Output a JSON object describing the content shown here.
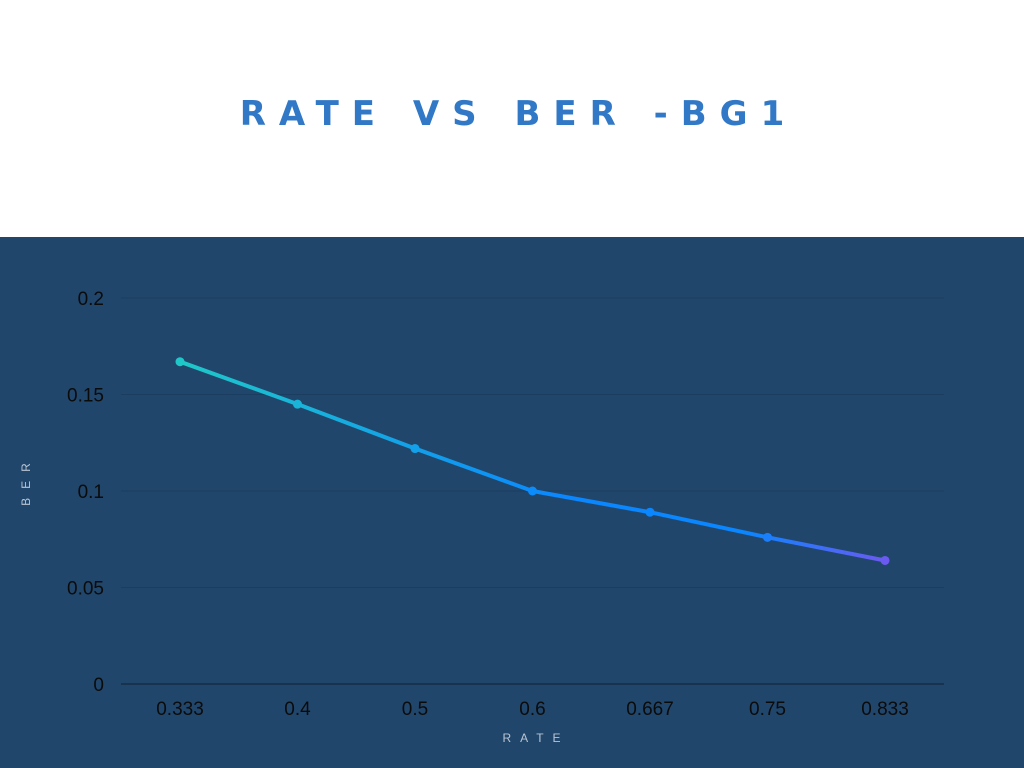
{
  "colors": {
    "title": "#3178c6",
    "panel_bg": "#21466b",
    "grid": "#1b3d5f",
    "axis_line": "#12283e",
    "gradient_start": "#1fc8c8",
    "gradient_mid": "#0a86ff",
    "gradient_end": "#6a5af0"
  },
  "chart_data": {
    "type": "line",
    "title": "RATE VS BER -BG1",
    "xlabel": "RATE",
    "ylabel": "BER",
    "categories": [
      "0.333",
      "0.4",
      "0.5",
      "0.6",
      "0.667",
      "0.75",
      "0.833"
    ],
    "series": [
      {
        "values": [
          0.167,
          0.145,
          0.122,
          0.1,
          0.089,
          0.076,
          0.064
        ]
      }
    ],
    "ylim": [
      0,
      0.2
    ],
    "yticks": [
      "0",
      "0.05",
      "0.1",
      "0.15",
      "0.2"
    ],
    "grid": true,
    "legend": "none"
  }
}
